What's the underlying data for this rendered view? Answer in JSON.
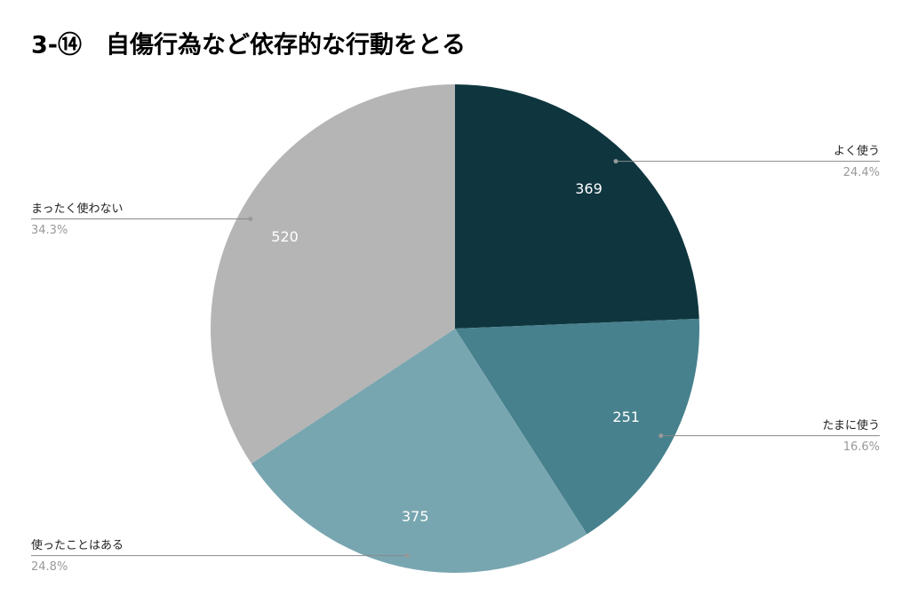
{
  "chart_data": {
    "type": "pie",
    "title": "3-⑭　自傷行為など依存的な行動をとる",
    "categories": [
      "よく使う",
      "たまに使う",
      "使ったことはある",
      "まったく使わない"
    ],
    "values": [
      369,
      251,
      375,
      520
    ],
    "percent_labels": [
      "24.4%",
      "16.6%",
      "24.8%",
      "34.3%"
    ],
    "colors": [
      "#0f363f",
      "#47818d",
      "#78a6b0",
      "#b5b5b5"
    ]
  }
}
